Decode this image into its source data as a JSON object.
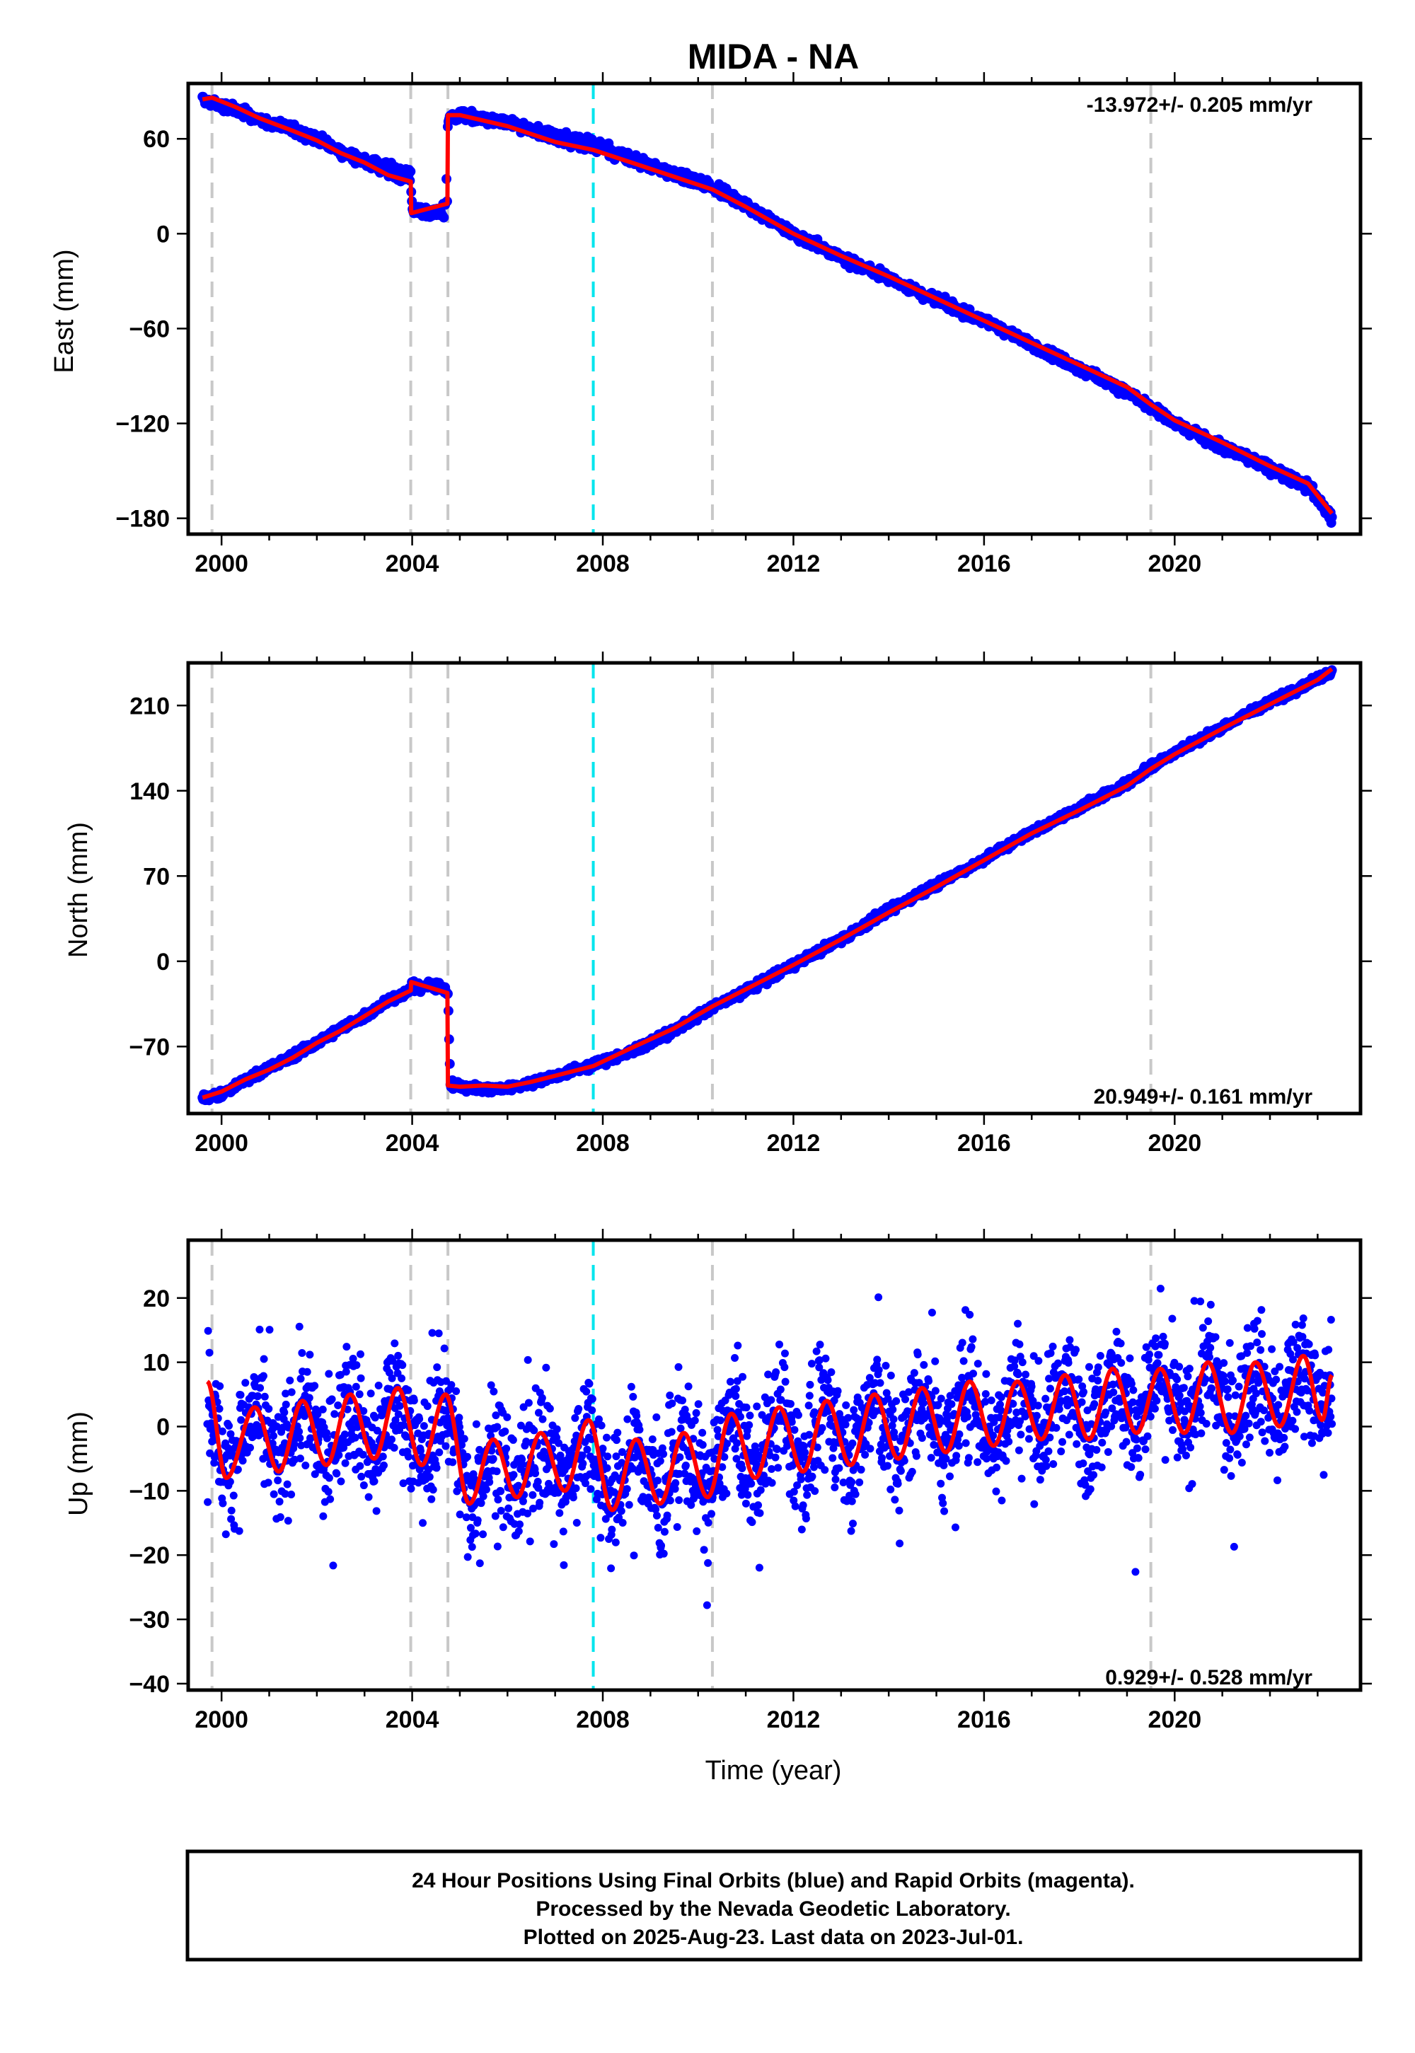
{
  "title": "MIDA - NA",
  "xlabel": "Time (year)",
  "caption": {
    "line1": "24 Hour Positions Using Final Orbits (blue) and Rapid Orbits (magenta).",
    "line2": "Processed by the Nevada Geodetic Laboratory.",
    "line3": "Plotted on 2025-Aug-23. Last data on 2023-Jul-01."
  },
  "colors": {
    "data": "#0000ff",
    "model": "#ff0000",
    "equipment_change": "#c8c8c8",
    "earthquake": "#00e5ee",
    "frame": "#000000"
  },
  "chart_data": [
    {
      "type": "scatter",
      "ylabel": "East (mm)",
      "rate": "-13.972+/- 0.205 mm/yr",
      "xlim": [
        1999.3,
        2023.9
      ],
      "ylim": [
        -190,
        95
      ],
      "xticks": [
        2000,
        2004,
        2008,
        2012,
        2016,
        2020
      ],
      "yticks": [
        -180,
        -120,
        -60,
        0,
        60
      ],
      "ytick_labels": [
        "−180",
        "−120",
        "−60",
        "0",
        "60"
      ],
      "grid": false,
      "vlines_gray": [
        1999.8,
        2003.97,
        2004.75,
        2010.3,
        2019.5
      ],
      "vlines_cyan": [
        2007.8
      ],
      "series": [
        {
          "values": [
            [
              1999.6,
              85
            ],
            [
              1999.8,
              83
            ],
            [
              2000.3,
              78
            ],
            [
              2000.8,
              72
            ],
            [
              2001.5,
              66
            ],
            [
              2002.0,
              60
            ],
            [
              2002.5,
              52
            ],
            [
              2003.0,
              46
            ],
            [
              2003.5,
              42
            ],
            [
              2003.97,
              37
            ],
            [
              2004.0,
              15
            ],
            [
              2004.7,
              12
            ],
            [
              2004.75,
              73
            ],
            [
              2005.0,
              75
            ],
            [
              2006.0,
              70
            ],
            [
              2007.0,
              62
            ],
            [
              2007.8,
              58
            ],
            [
              2008.5,
              48
            ],
            [
              2009.5,
              38
            ],
            [
              2010.3,
              30
            ],
            [
              2011.0,
              18
            ],
            [
              2012.0,
              0
            ],
            [
              2013.0,
              -15
            ],
            [
              2014.0,
              -28
            ],
            [
              2015.0,
              -42
            ],
            [
              2016.0,
              -55
            ],
            [
              2017.0,
              -70
            ],
            [
              2018.0,
              -85
            ],
            [
              2019.0,
              -100
            ],
            [
              2019.5,
              -110
            ],
            [
              2020.0,
              -120
            ],
            [
              2021.0,
              -135
            ],
            [
              2022.0,
              -148
            ],
            [
              2022.8,
              -160
            ],
            [
              2023.3,
              -180
            ]
          ]
        },
        {
          "values": [
            [
              1999.6,
              85
            ],
            [
              1999.8,
              86
            ],
            [
              2000.3,
              80
            ],
            [
              2000.8,
              73
            ],
            [
              2001.5,
              65
            ],
            [
              2002.0,
              59
            ],
            [
              2002.5,
              51
            ],
            [
              2003.0,
              45
            ],
            [
              2003.5,
              37
            ],
            [
              2003.97,
              33
            ],
            [
              2003.98,
              13
            ],
            [
              2004.74,
              19
            ],
            [
              2004.75,
              75
            ],
            [
              2005.0,
              75
            ],
            [
              2006.0,
              68
            ],
            [
              2007.0,
              58
            ],
            [
              2007.8,
              53
            ],
            [
              2008.5,
              46
            ],
            [
              2009.5,
              36
            ],
            [
              2010.3,
              28
            ],
            [
              2011.0,
              17
            ],
            [
              2012.0,
              0
            ],
            [
              2013.0,
              -14
            ],
            [
              2014.0,
              -27
            ],
            [
              2015.0,
              -41
            ],
            [
              2016.0,
              -55
            ],
            [
              2017.0,
              -69
            ],
            [
              2018.0,
              -83
            ],
            [
              2019.0,
              -97
            ],
            [
              2019.5,
              -108
            ],
            [
              2020.0,
              -118
            ],
            [
              2021.0,
              -132
            ],
            [
              2022.0,
              -147
            ],
            [
              2022.8,
              -158
            ],
            [
              2023.3,
              -177
            ]
          ]
        }
      ]
    },
    {
      "type": "scatter",
      "ylabel": "North (mm)",
      "rate": "20.949+/- 0.161 mm/yr",
      "xlim": [
        1999.3,
        2023.9
      ],
      "ylim": [
        -125,
        245
      ],
      "xticks": [
        2000,
        2004,
        2008,
        2012,
        2016,
        2020
      ],
      "yticks": [
        -70,
        0,
        70,
        140,
        210
      ],
      "ytick_labels": [
        "−70",
        "0",
        "70",
        "140",
        "210"
      ],
      "grid": false,
      "vlines_gray": [
        1999.8,
        2003.97,
        2004.75,
        2010.3,
        2019.5
      ],
      "vlines_cyan": [
        2007.8
      ],
      "series": [
        {
          "values": [
            [
              1999.6,
              -112
            ],
            [
              2000.0,
              -110
            ],
            [
              2000.5,
              -97
            ],
            [
              2001.0,
              -87
            ],
            [
              2001.5,
              -78
            ],
            [
              2002.0,
              -67
            ],
            [
              2002.5,
              -55
            ],
            [
              2003.0,
              -45
            ],
            [
              2003.5,
              -32
            ],
            [
              2003.97,
              -24
            ],
            [
              2004.5,
              -18
            ],
            [
              2004.75,
              -25
            ],
            [
              2004.8,
              -100
            ],
            [
              2005.0,
              -103
            ],
            [
              2005.5,
              -105
            ],
            [
              2006.0,
              -104
            ],
            [
              2006.5,
              -100
            ],
            [
              2007.0,
              -94
            ],
            [
              2007.8,
              -85
            ],
            [
              2008.5,
              -76
            ],
            [
              2009.5,
              -57
            ],
            [
              2010.3,
              -38
            ],
            [
              2011.0,
              -24
            ],
            [
              2012.0,
              -3
            ],
            [
              2013.0,
              18
            ],
            [
              2014.0,
              42
            ],
            [
              2015.0,
              63
            ],
            [
              2016.0,
              84
            ],
            [
              2017.0,
              106
            ],
            [
              2018.0,
              126
            ],
            [
              2019.0,
              146
            ],
            [
              2019.5,
              160
            ],
            [
              2020.0,
              171
            ],
            [
              2021.0,
              192
            ],
            [
              2022.0,
              213
            ],
            [
              2023.0,
              232
            ],
            [
              2023.3,
              238
            ]
          ]
        },
        {
          "values": [
            [
              1999.6,
              -112
            ],
            [
              2000.0,
              -107
            ],
            [
              2000.5,
              -97
            ],
            [
              2001.0,
              -89
            ],
            [
              2001.5,
              -79
            ],
            [
              2002.0,
              -67
            ],
            [
              2002.5,
              -57
            ],
            [
              2003.0,
              -45
            ],
            [
              2003.5,
              -33
            ],
            [
              2003.97,
              -24
            ],
            [
              2003.98,
              -17
            ],
            [
              2004.74,
              -26
            ],
            [
              2004.75,
              -102
            ],
            [
              2005.0,
              -103
            ],
            [
              2005.5,
              -102
            ],
            [
              2006.0,
              -103
            ],
            [
              2006.5,
              -99
            ],
            [
              2007.0,
              -94
            ],
            [
              2007.8,
              -86
            ],
            [
              2008.5,
              -73
            ],
            [
              2009.5,
              -55
            ],
            [
              2010.3,
              -37
            ],
            [
              2011.0,
              -23
            ],
            [
              2012.0,
              -3
            ],
            [
              2013.0,
              18
            ],
            [
              2014.0,
              40
            ],
            [
              2015.0,
              61
            ],
            [
              2016.0,
              83
            ],
            [
              2017.0,
              105
            ],
            [
              2018.0,
              124
            ],
            [
              2019.0,
              144
            ],
            [
              2019.5,
              158
            ],
            [
              2020.0,
              170
            ],
            [
              2021.0,
              191
            ],
            [
              2022.0,
              211
            ],
            [
              2023.0,
              231
            ],
            [
              2023.3,
              240
            ]
          ]
        }
      ]
    },
    {
      "type": "scatter",
      "ylabel": "Up (mm)",
      "rate": "0.929+/- 0.528 mm/yr",
      "xlim": [
        1999.3,
        2023.9
      ],
      "ylim": [
        -41,
        29
      ],
      "xticks": [
        2000,
        2004,
        2008,
        2012,
        2016,
        2020
      ],
      "yticks": [
        -40,
        -30,
        -20,
        -10,
        0,
        10,
        20
      ],
      "ytick_labels": [
        "−40",
        "−30",
        "−20",
        "−10",
        "0",
        "10",
        "20"
      ],
      "grid": false,
      "vlines_gray": [
        1999.8,
        2003.97,
        2004.75,
        2010.3,
        2019.5
      ],
      "vlines_cyan": [
        2007.8
      ],
      "series": [
        {
          "values": [
            [
              1999.7,
              3
            ],
            [
              2000.0,
              -2
            ],
            [
              2001.0,
              -3
            ],
            [
              2002.0,
              -2
            ],
            [
              2003.0,
              3
            ],
            [
              2004.0,
              2
            ],
            [
              2005.0,
              -4
            ],
            [
              2006.0,
              -5
            ],
            [
              2007.0,
              -4
            ],
            [
              2008.0,
              -5
            ],
            [
              2009.0,
              -4
            ],
            [
              2010.0,
              -3
            ],
            [
              2011.0,
              -2
            ],
            [
              2012.0,
              -1
            ],
            [
              2013.0,
              0
            ],
            [
              2014.0,
              1
            ],
            [
              2015.0,
              2
            ],
            [
              2016.0,
              3
            ],
            [
              2017.0,
              3
            ],
            [
              2018.0,
              4
            ],
            [
              2019.0,
              4
            ],
            [
              2020.0,
              4
            ],
            [
              2021.0,
              5
            ],
            [
              2022.0,
              5
            ],
            [
              2023.3,
              4
            ]
          ]
        },
        {
          "values": [
            [
              1999.7,
              7
            ],
            [
              2000.1,
              -8
            ],
            [
              2000.7,
              3
            ],
            [
              2001.2,
              -7
            ],
            [
              2001.7,
              4
            ],
            [
              2002.2,
              -6
            ],
            [
              2002.7,
              5
            ],
            [
              2003.2,
              -5
            ],
            [
              2003.7,
              6
            ],
            [
              2004.2,
              -6
            ],
            [
              2004.7,
              5
            ],
            [
              2005.2,
              -12
            ],
            [
              2005.7,
              -2
            ],
            [
              2006.2,
              -11
            ],
            [
              2006.7,
              -1
            ],
            [
              2007.2,
              -10
            ],
            [
              2007.7,
              1
            ],
            [
              2008.2,
              -13
            ],
            [
              2008.7,
              -2
            ],
            [
              2009.2,
              -12
            ],
            [
              2009.7,
              -1
            ],
            [
              2010.2,
              -11
            ],
            [
              2010.7,
              2
            ],
            [
              2011.2,
              -8
            ],
            [
              2011.7,
              3
            ],
            [
              2012.2,
              -7
            ],
            [
              2012.7,
              4
            ],
            [
              2013.2,
              -6
            ],
            [
              2013.7,
              5
            ],
            [
              2014.2,
              -5
            ],
            [
              2014.7,
              6
            ],
            [
              2015.2,
              -4
            ],
            [
              2015.7,
              7
            ],
            [
              2016.2,
              -3
            ],
            [
              2016.7,
              7
            ],
            [
              2017.2,
              -2
            ],
            [
              2017.7,
              8
            ],
            [
              2018.2,
              -2
            ],
            [
              2018.7,
              9
            ],
            [
              2019.2,
              -1
            ],
            [
              2019.7,
              9
            ],
            [
              2020.2,
              -1
            ],
            [
              2020.7,
              10
            ],
            [
              2021.2,
              -1
            ],
            [
              2021.7,
              10
            ],
            [
              2022.2,
              0
            ],
            [
              2022.7,
              11
            ],
            [
              2023.1,
              1
            ],
            [
              2023.3,
              8
            ]
          ]
        }
      ]
    }
  ]
}
